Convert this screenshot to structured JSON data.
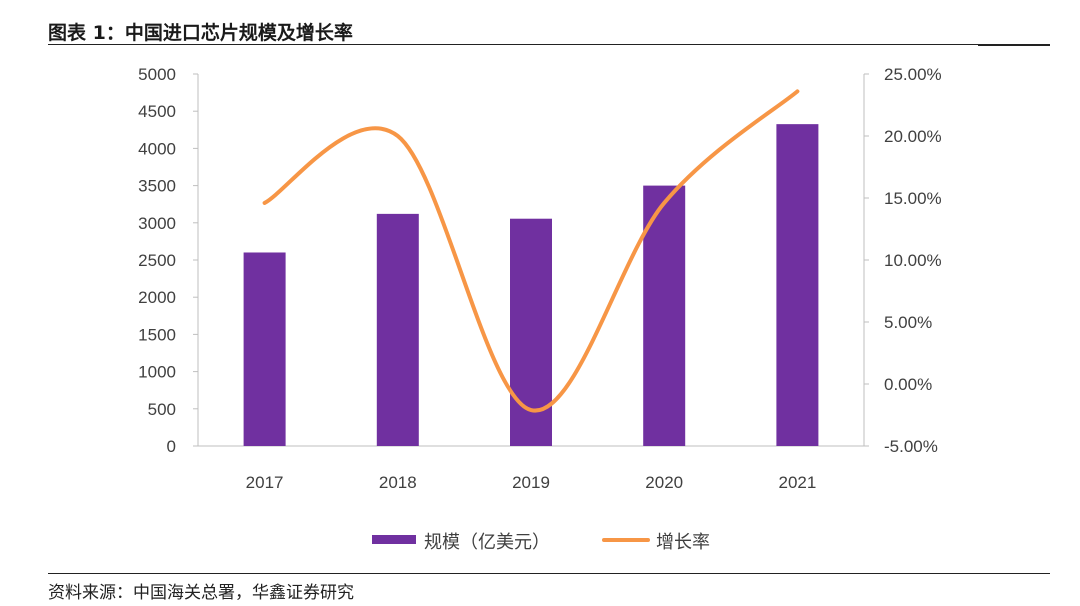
{
  "header": {
    "title": "图表 1：中国进口芯片规模及增长率"
  },
  "footer": {
    "source": "资料来源：中国海关总署，华鑫证券研究"
  },
  "chart_data": {
    "type": "bar",
    "categories": [
      "2017",
      "2018",
      "2019",
      "2020",
      "2021"
    ],
    "series": [
      {
        "name": "规模（亿美元）",
        "type": "bar",
        "axis": "left",
        "color": "#7030A0",
        "values": [
          2601,
          3120,
          3055,
          3500,
          4326
        ]
      },
      {
        "name": "增长率",
        "type": "line",
        "axis": "right",
        "color": "#F79646",
        "smooth": true,
        "values": [
          14.6,
          20.0,
          -2.1,
          14.6,
          23.6
        ]
      }
    ],
    "y_left": {
      "ylim": [
        0,
        5000
      ],
      "ticks": [
        0,
        500,
        1000,
        1500,
        2000,
        2500,
        3000,
        3500,
        4000,
        4500,
        5000
      ],
      "tick_labels": [
        "0",
        "500",
        "1000",
        "1500",
        "2000",
        "2500",
        "3000",
        "3500",
        "4000",
        "4500",
        "5000"
      ]
    },
    "y_right": {
      "ylim": [
        -5,
        25
      ],
      "ticks": [
        -5,
        0,
        5,
        10,
        15,
        20,
        25
      ],
      "tick_labels": [
        "-5.00%",
        "0.00%",
        "5.00%",
        "10.00%",
        "15.00%",
        "20.00%",
        "25.00%"
      ]
    },
    "grid": false,
    "legend_position": "bottom"
  }
}
